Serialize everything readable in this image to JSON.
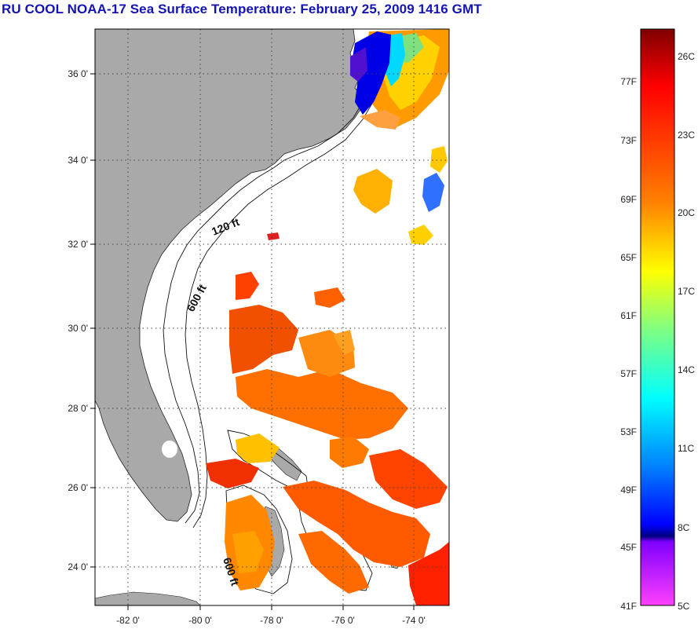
{
  "title": "RU COOL  NOAA-17  Sea Surface Temperature:  February 25, 2009 1416 GMT",
  "map": {
    "lat_ticks": [
      "36 0'",
      "34 0'",
      "32 0'",
      "30 0'",
      "28 0'",
      "26 0'",
      "24 0'"
    ],
    "lon_ticks": [
      "-82 0'",
      "-80 0'",
      "-78 0'",
      "-76 0'",
      "-74 0'"
    ],
    "isobath_labels": [
      "120 ft",
      "600 ft",
      "600 ft"
    ],
    "colors": {
      "land": "#a9a9a9",
      "ocean": "#ffffff",
      "grid": "#444444",
      "title": "#1414b4"
    }
  },
  "colorbar": {
    "fahrenheit_labels": [
      "77F",
      "73F",
      "69F",
      "65F",
      "61F",
      "57F",
      "53F",
      "49F",
      "45F",
      "41F"
    ],
    "celsius_labels": [
      "26C",
      "23C",
      "20C",
      "17C",
      "14C",
      "11C",
      "8C",
      "5C"
    ],
    "gradient_colors": [
      "#800000",
      "#ff0000",
      "#ff8000",
      "#ffff00",
      "#80ff80",
      "#00ffff",
      "#0080ff",
      "#0000ff",
      "#000080",
      "#8000ff",
      "#ff40ff"
    ]
  }
}
